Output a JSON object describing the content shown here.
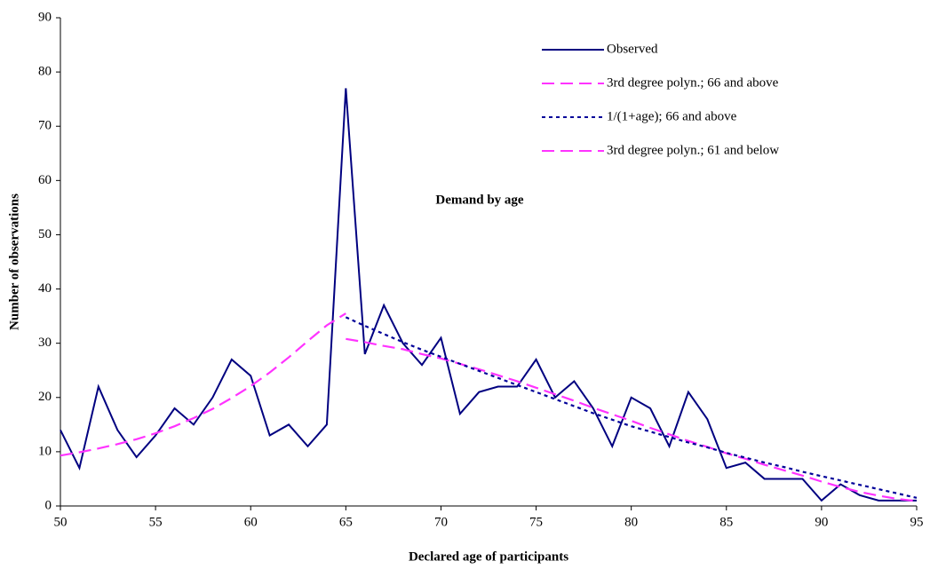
{
  "chart_data": {
    "type": "line",
    "title": "Demand by age",
    "x_label": "Declared age of participants",
    "y_label": "Number of observations",
    "x": [
      50,
      51,
      52,
      53,
      54,
      55,
      56,
      57,
      58,
      59,
      60,
      61,
      62,
      63,
      64,
      65,
      66,
      67,
      68,
      69,
      70,
      71,
      72,
      73,
      74,
      75,
      76,
      77,
      78,
      79,
      80,
      81,
      82,
      83,
      84,
      85,
      86,
      87,
      88,
      89,
      90,
      91,
      92,
      93,
      94,
      95
    ],
    "xlim": [
      50,
      95
    ],
    "xticks": [
      50,
      55,
      60,
      65,
      70,
      75,
      80,
      85,
      90,
      95
    ],
    "ylim": [
      0,
      90
    ],
    "yticks": [
      0,
      10,
      20,
      30,
      40,
      50,
      60,
      70,
      80,
      90
    ],
    "grid": false,
    "legend": "top-right",
    "series": [
      {
        "name": "Observed",
        "color": "#000080",
        "dash": "solid",
        "values": [
          14,
          7,
          22,
          14,
          9,
          13,
          18,
          15,
          20,
          27,
          24,
          13,
          15,
          11,
          15,
          77,
          28,
          37,
          30,
          26,
          31,
          17,
          21,
          22,
          22,
          27,
          20,
          23,
          18,
          11,
          20,
          18,
          11,
          21,
          16,
          7,
          8,
          5,
          5,
          5,
          1,
          4,
          2,
          1,
          1,
          1
        ]
      },
      {
        "name": "3rd degree polyn.; 66 and above",
        "color": "#ff33ff",
        "dash": "long",
        "values": [
          null,
          null,
          null,
          null,
          null,
          null,
          null,
          null,
          null,
          null,
          null,
          null,
          null,
          null,
          null,
          30.8,
          30.2,
          29.5,
          28.9,
          28.0,
          27.2,
          26.2,
          25.2,
          24.1,
          23.0,
          21.8,
          20.6,
          19.4,
          18.1,
          16.9,
          15.7,
          14.4,
          13.2,
          12.0,
          10.9,
          9.7,
          8.7,
          7.6,
          6.6,
          5.6,
          4.5,
          3.5,
          2.6,
          1.9,
          1.3,
          0.9
        ]
      },
      {
        "name": "1/(1+age); 66 and above",
        "color": "#000099",
        "dash": "short",
        "values": [
          null,
          null,
          null,
          null,
          null,
          null,
          null,
          null,
          null,
          null,
          null,
          null,
          null,
          null,
          null,
          34.8,
          33.2,
          31.7,
          30.2,
          28.8,
          27.5,
          26.2,
          24.9,
          23.6,
          22.3,
          21.0,
          19.7,
          18.4,
          17.1,
          15.9,
          14.7,
          13.7,
          12.7,
          11.7,
          10.8,
          9.8,
          8.9,
          8.0,
          7.2,
          6.3,
          5.5,
          4.7,
          3.9,
          3.1,
          2.3,
          1.5
        ]
      },
      {
        "name": "3rd degree polyn.; 61 and below",
        "color": "#ff33ff",
        "dash": "long",
        "values": [
          9.3,
          9.9,
          10.6,
          11.4,
          12.3,
          13.4,
          14.7,
          16.2,
          17.9,
          19.9,
          22.1,
          24.6,
          27.4,
          30.4,
          33.3,
          35.5,
          null,
          null,
          null,
          null,
          null,
          null,
          null,
          null,
          null,
          null,
          null,
          null,
          null,
          null,
          null,
          null,
          null,
          null,
          null,
          null,
          null,
          null,
          null,
          null,
          null,
          null,
          null,
          null,
          null,
          null
        ]
      }
    ]
  }
}
